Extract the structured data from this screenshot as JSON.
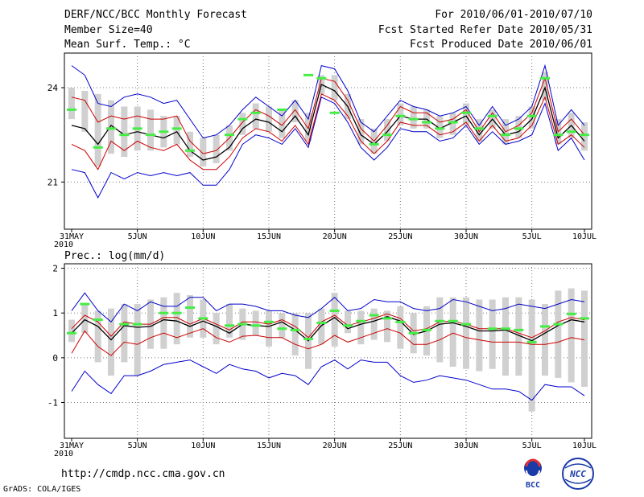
{
  "header": {
    "title": "DERF/NCC/BCC Monthly Forecast",
    "member_size": "Member Size=40",
    "temp_label": "Mean Surf. Temp.: °C",
    "period": "For 2010/06/01-2010/07/10",
    "started": "Fcst Started Refer Date 2010/05/31",
    "produced": "Fcst Produced Date 2010/06/01"
  },
  "footer": {
    "url": "http://cmdp.ncc.cma.gov.cn",
    "grads": "GrADS: COLA/IGES",
    "logo_left_text": "BCC",
    "logo_right_text": "NCC"
  },
  "colors": {
    "ensemble_mean": "#000000",
    "inner_spread": "#cc0000",
    "outer_spread": "#0000cc",
    "observation": "#44ee44",
    "box": "#d0d0d0"
  },
  "chart_data": [
    {
      "type": "line",
      "title": "Mean Surf. Temp.: °C",
      "x_tick_labels": [
        "31MAY\n2010",
        "5JUN",
        "10JUN",
        "15JUN",
        "20JUN",
        "25JUN",
        "30JUN",
        "5JUL",
        "10JUL"
      ],
      "ylim": [
        19.5,
        25.1
      ],
      "yticks": [
        21,
        24
      ],
      "grid": true,
      "days": [
        1,
        2,
        3,
        4,
        5,
        6,
        7,
        8,
        9,
        10,
        11,
        12,
        13,
        14,
        15,
        16,
        17,
        18,
        19,
        20,
        21,
        22,
        23,
        24,
        25,
        26,
        27,
        28,
        29,
        30,
        31,
        32,
        33,
        34,
        35,
        36,
        37,
        38,
        39,
        40
      ],
      "series": [
        {
          "name": "upper-blue",
          "values": [
            24.7,
            24.4,
            23.5,
            23.4,
            23.7,
            23.8,
            23.7,
            23.5,
            23.6,
            23.0,
            22.4,
            22.5,
            22.8,
            23.3,
            23.7,
            23.4,
            23.1,
            23.6,
            23.0,
            24.7,
            24.6,
            23.9,
            22.9,
            22.6,
            23.1,
            23.6,
            23.4,
            23.3,
            23.1,
            23.2,
            23.4,
            22.8,
            23.4,
            22.8,
            23.0,
            23.4,
            24.7,
            22.8,
            23.3,
            22.8
          ]
        },
        {
          "name": "upper-red",
          "values": [
            23.7,
            23.6,
            22.9,
            23.1,
            23.0,
            23.1,
            23.0,
            23.0,
            23.1,
            22.3,
            21.9,
            22.0,
            22.4,
            22.9,
            23.3,
            23.1,
            22.8,
            23.3,
            22.7,
            24.3,
            24.2,
            23.6,
            22.7,
            22.3,
            22.8,
            23.4,
            23.2,
            23.2,
            22.9,
            23.0,
            23.3,
            22.6,
            23.2,
            22.6,
            22.8,
            23.2,
            24.3,
            22.6,
            23.0,
            22.5
          ]
        },
        {
          "name": "mean",
          "values": [
            22.8,
            22.7,
            22.2,
            22.8,
            22.5,
            22.6,
            22.5,
            22.4,
            22.6,
            22.0,
            21.7,
            21.8,
            22.1,
            22.7,
            23.0,
            22.9,
            22.6,
            23.1,
            22.5,
            24.1,
            23.9,
            23.4,
            22.5,
            22.2,
            22.6,
            23.1,
            23.0,
            23.0,
            22.7,
            22.9,
            23.1,
            22.5,
            23.0,
            22.5,
            22.6,
            23.0,
            24.0,
            22.4,
            22.8,
            22.3
          ]
        },
        {
          "name": "lower-red",
          "values": [
            22.2,
            22.0,
            21.4,
            22.3,
            22.0,
            22.3,
            22.1,
            22.0,
            22.2,
            21.7,
            21.4,
            21.4,
            21.8,
            22.4,
            22.7,
            22.6,
            22.3,
            22.8,
            22.2,
            23.8,
            23.6,
            23.1,
            22.3,
            21.9,
            22.3,
            22.9,
            22.8,
            22.8,
            22.5,
            22.6,
            22.9,
            22.3,
            22.8,
            22.3,
            22.4,
            22.8,
            23.7,
            22.2,
            22.5,
            22.1
          ]
        },
        {
          "name": "lower-blue",
          "values": [
            21.4,
            21.3,
            20.5,
            21.3,
            21.1,
            21.3,
            21.2,
            21.3,
            21.2,
            21.3,
            20.9,
            20.9,
            21.4,
            22.2,
            22.5,
            22.4,
            22.2,
            22.7,
            22.1,
            23.7,
            23.5,
            22.9,
            22.1,
            21.7,
            22.1,
            22.7,
            22.6,
            22.6,
            22.3,
            22.4,
            22.8,
            22.2,
            22.6,
            22.2,
            22.3,
            22.5,
            23.5,
            22.0,
            22.4,
            21.7
          ]
        },
        {
          "name": "obs",
          "values": [
            23.3,
            null,
            22.1,
            22.7,
            22.5,
            22.7,
            22.5,
            22.6,
            22.7,
            22.0,
            null,
            null,
            22.5,
            23.0,
            23.2,
            null,
            23.3,
            null,
            24.4,
            24.3,
            23.2,
            null,
            null,
            22.2,
            22.5,
            23.1,
            23.0,
            22.9,
            22.7,
            22.9,
            23.2,
            22.7,
            23.1,
            22.5,
            22.7,
            23.1,
            24.3,
            22.5,
            22.6,
            22.5
          ]
        },
        {
          "name": "box-high",
          "values": [
            24.0,
            23.9,
            23.8,
            23.6,
            23.4,
            23.4,
            23.3,
            23.1,
            23.1,
            22.6,
            22.4,
            22.5,
            22.8,
            23.2,
            23.5,
            23.4,
            23.3,
            23.6,
            23.2,
            24.4,
            24.4,
            23.8,
            23.0,
            22.7,
            23.0,
            23.5,
            23.4,
            23.3,
            23.1,
            23.2,
            23.5,
            23.0,
            23.3,
            23.0,
            23.1,
            23.4,
            24.5,
            23.0,
            23.2,
            22.9
          ]
        },
        {
          "name": "box-low",
          "values": [
            23.0,
            22.6,
            21.5,
            21.9,
            21.8,
            22.0,
            22.0,
            22.1,
            22.2,
            21.8,
            21.5,
            21.6,
            22.0,
            22.5,
            22.7,
            22.6,
            22.4,
            22.9,
            22.3,
            23.8,
            23.6,
            23.0,
            22.2,
            21.9,
            22.3,
            22.8,
            22.7,
            22.7,
            22.4,
            22.5,
            22.8,
            22.3,
            22.7,
            22.2,
            22.4,
            22.7,
            23.6,
            22.2,
            22.4,
            22.0
          ]
        }
      ]
    },
    {
      "type": "line",
      "title": "Prec.: log(mm/d)",
      "x_tick_labels": [
        "31MAY\n2010",
        "5JUN",
        "10JUN",
        "15JUN",
        "20JUN",
        "25JUN",
        "30JUN",
        "5JUL",
        "10JUL"
      ],
      "ylim": [
        -1.8,
        2.1
      ],
      "yticks": [
        -1,
        0,
        1,
        2
      ],
      "grid": true,
      "days": [
        1,
        2,
        3,
        4,
        5,
        6,
        7,
        8,
        9,
        10,
        11,
        12,
        13,
        14,
        15,
        16,
        17,
        18,
        19,
        20,
        21,
        22,
        23,
        24,
        25,
        26,
        27,
        28,
        29,
        30,
        31,
        32,
        33,
        34,
        35,
        36,
        37,
        38,
        39,
        40
      ],
      "series": [
        {
          "name": "upper-blue",
          "values": [
            1.05,
            1.45,
            1.05,
            0.8,
            1.2,
            1.05,
            1.25,
            1.15,
            1.15,
            1.35,
            1.35,
            1.05,
            1.2,
            1.2,
            1.15,
            1.05,
            1.05,
            0.95,
            0.9,
            1.1,
            1.35,
            1.05,
            1.1,
            1.3,
            1.25,
            1.25,
            1.1,
            1.05,
            1.1,
            1.3,
            1.25,
            1.15,
            1.05,
            1.1,
            1.2,
            1.15,
            1.1,
            1.2,
            1.3,
            1.25
          ]
        },
        {
          "name": "upper-red",
          "values": [
            0.65,
            0.95,
            0.8,
            0.48,
            0.8,
            0.75,
            0.75,
            0.9,
            0.9,
            0.75,
            0.88,
            0.75,
            0.62,
            0.8,
            0.8,
            0.75,
            0.85,
            0.7,
            0.45,
            0.8,
            0.95,
            0.72,
            0.8,
            0.88,
            0.98,
            0.88,
            0.6,
            0.65,
            0.8,
            0.82,
            0.75,
            0.65,
            0.65,
            0.65,
            0.55,
            0.45,
            0.6,
            0.8,
            0.9,
            0.85
          ]
        },
        {
          "name": "mean",
          "values": [
            0.55,
            0.85,
            0.7,
            0.4,
            0.72,
            0.68,
            0.7,
            0.85,
            0.82,
            0.7,
            0.82,
            0.7,
            0.55,
            0.75,
            0.72,
            0.7,
            0.8,
            0.62,
            0.38,
            0.72,
            0.9,
            0.65,
            0.75,
            0.82,
            0.92,
            0.82,
            0.52,
            0.6,
            0.75,
            0.78,
            0.7,
            0.6,
            0.6,
            0.62,
            0.5,
            0.38,
            0.55,
            0.72,
            0.85,
            0.8
          ]
        },
        {
          "name": "lower-red",
          "values": [
            0.1,
            0.6,
            0.25,
            0.05,
            0.35,
            0.3,
            0.45,
            0.55,
            0.45,
            0.55,
            0.65,
            0.45,
            0.35,
            0.48,
            0.5,
            0.45,
            0.45,
            0.3,
            0.2,
            0.3,
            0.5,
            0.35,
            0.45,
            0.55,
            0.65,
            0.55,
            0.3,
            0.3,
            0.4,
            0.55,
            0.45,
            0.4,
            0.35,
            0.35,
            0.35,
            0.3,
            0.3,
            0.35,
            0.45,
            0.4
          ]
        },
        {
          "name": "lower-blue",
          "values": [
            -0.75,
            -0.3,
            -0.6,
            -0.8,
            -0.4,
            -0.4,
            -0.3,
            -0.15,
            -0.1,
            -0.05,
            -0.2,
            -0.35,
            -0.15,
            -0.25,
            -0.3,
            -0.45,
            -0.35,
            -0.4,
            -0.6,
            -0.2,
            -0.05,
            -0.25,
            -0.05,
            -0.1,
            -0.1,
            -0.4,
            -0.55,
            -0.5,
            -0.4,
            -0.45,
            -0.5,
            -0.6,
            -0.7,
            -0.7,
            -0.75,
            -0.95,
            -0.6,
            -0.65,
            -0.65,
            -0.85
          ]
        },
        {
          "name": "obs",
          "values": [
            0.55,
            1.2,
            0.85,
            null,
            0.75,
            0.75,
            null,
            1.0,
            1.0,
            1.12,
            0.88,
            null,
            0.72,
            0.75,
            0.72,
            0.8,
            0.65,
            0.62,
            0.42,
            0.78,
            1.05,
            0.72,
            0.82,
            0.95,
            0.88,
            0.8,
            0.55,
            0.62,
            0.82,
            0.82,
            0.75,
            null,
            0.65,
            0.65,
            0.62,
            0.35,
            0.7,
            0.75,
            0.98,
            0.88
          ]
        },
        {
          "name": "box-high",
          "values": [
            0.85,
            1.2,
            1.05,
            1.1,
            1.2,
            1.2,
            1.3,
            1.35,
            1.45,
            1.4,
            1.3,
            1.0,
            1.2,
            1.1,
            1.05,
            1.05,
            1.0,
            1.0,
            1.0,
            1.1,
            1.45,
            1.05,
            1.05,
            1.1,
            1.05,
            1.15,
            1.0,
            1.15,
            1.35,
            1.35,
            1.35,
            1.3,
            1.3,
            1.35,
            1.35,
            1.3,
            1.2,
            1.5,
            1.55,
            1.5
          ]
        },
        {
          "name": "box-low",
          "values": [
            0.35,
            0.55,
            -0.1,
            -0.4,
            -0.1,
            -0.4,
            0.2,
            0.2,
            0.3,
            0.45,
            0.45,
            0.3,
            0.45,
            0.4,
            0.5,
            0.25,
            0.45,
            0.05,
            -0.25,
            0.3,
            0.25,
            0.55,
            0.3,
            0.4,
            0.35,
            0.2,
            0.1,
            0.05,
            -0.1,
            -0.2,
            -0.25,
            -0.3,
            -0.25,
            -0.4,
            -0.4,
            -1.2,
            -0.4,
            -0.45,
            -0.55,
            -0.65
          ]
        }
      ]
    }
  ]
}
